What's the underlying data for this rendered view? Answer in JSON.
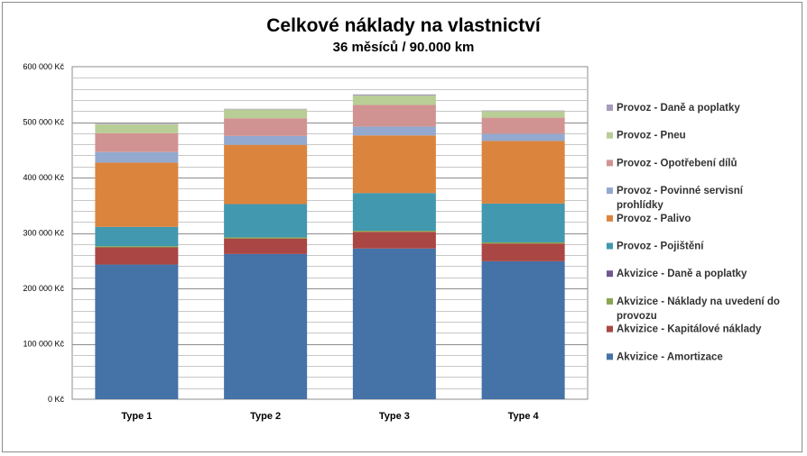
{
  "chart_data": {
    "type": "bar",
    "stacked": true,
    "title": "Celkové náklady na vlastnictví",
    "subtitle": "36 měsíců / 90.000 km",
    "categories": [
      "Type 1",
      "Type 2",
      "Type 3",
      "Type 4"
    ],
    "ylim": [
      0,
      600000
    ],
    "yticks": [
      "0 Kč",
      "100 000 Kč",
      "200 000 Kč",
      "300 000 Kč",
      "400 000 Kč",
      "500 000 Kč",
      "600 000 Kč"
    ],
    "grid": true,
    "legend_position": "right",
    "series": [
      {
        "name": "Akvizice - Amortizace",
        "color": "#4572A7",
        "values": [
          243000,
          262000,
          272000,
          249000
        ]
      },
      {
        "name": "Akvizice - Kapitálové náklady",
        "color": "#AA4643",
        "values": [
          31000,
          28000,
          30000,
          32000
        ]
      },
      {
        "name": "Akvizice - Náklady na uvedení do provozu",
        "color": "#89A54E",
        "values": [
          2000,
          2000,
          2000,
          2000
        ]
      },
      {
        "name": "Akvizice - Daně a poplatky",
        "color": "#71588F",
        "values": [
          0,
          0,
          0,
          0
        ]
      },
      {
        "name": "Provoz - Pojištění",
        "color": "#4198AF",
        "values": [
          35000,
          60000,
          68000,
          70000
        ]
      },
      {
        "name": "Provoz - Palivo",
        "color": "#DB843D",
        "values": [
          116000,
          107000,
          104000,
          113000
        ]
      },
      {
        "name": "Provoz - Povinné servisní prohlídky",
        "color": "#93A9CF",
        "values": [
          19000,
          16000,
          16000,
          13000
        ]
      },
      {
        "name": "Provoz - Opotřebení dílů",
        "color": "#D19392",
        "values": [
          34000,
          32000,
          39000,
          29000
        ]
      },
      {
        "name": "Provoz - Pneu",
        "color": "#B9CD96",
        "values": [
          16000,
          16000,
          17000,
          12000
        ]
      },
      {
        "name": "Provoz - Daně a poplatky",
        "color": "#A99BBD",
        "values": [
          1000,
          1000,
          2000,
          1000
        ]
      }
    ]
  }
}
